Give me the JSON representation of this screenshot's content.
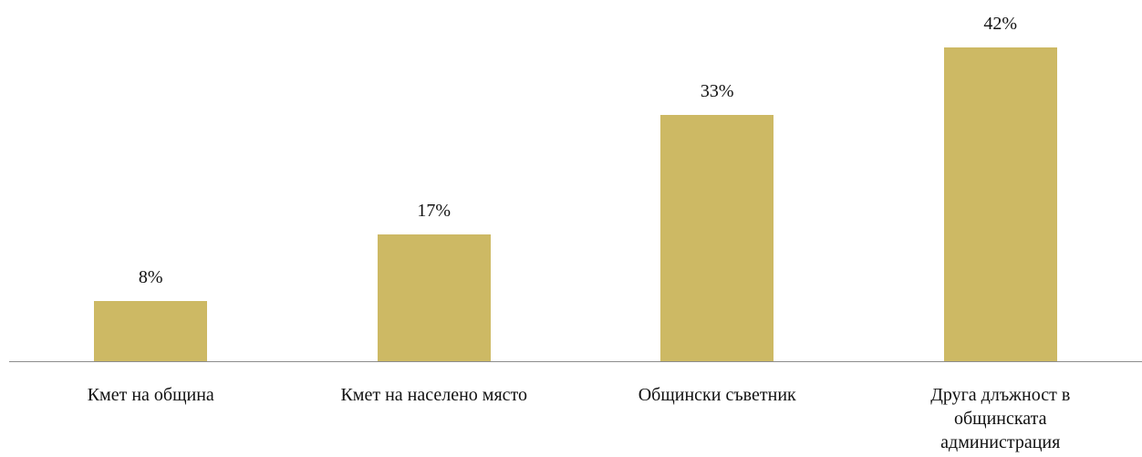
{
  "chart_data": {
    "type": "bar",
    "categories": [
      "Кмет на община",
      "Кмет на населено място",
      "Общински съветник",
      "Друга длъжност в общинската администрация"
    ],
    "values": [
      8,
      17,
      33,
      42
    ],
    "value_labels": [
      "8%",
      "17%",
      "33%",
      "42%"
    ],
    "color": "#cdb964"
  }
}
